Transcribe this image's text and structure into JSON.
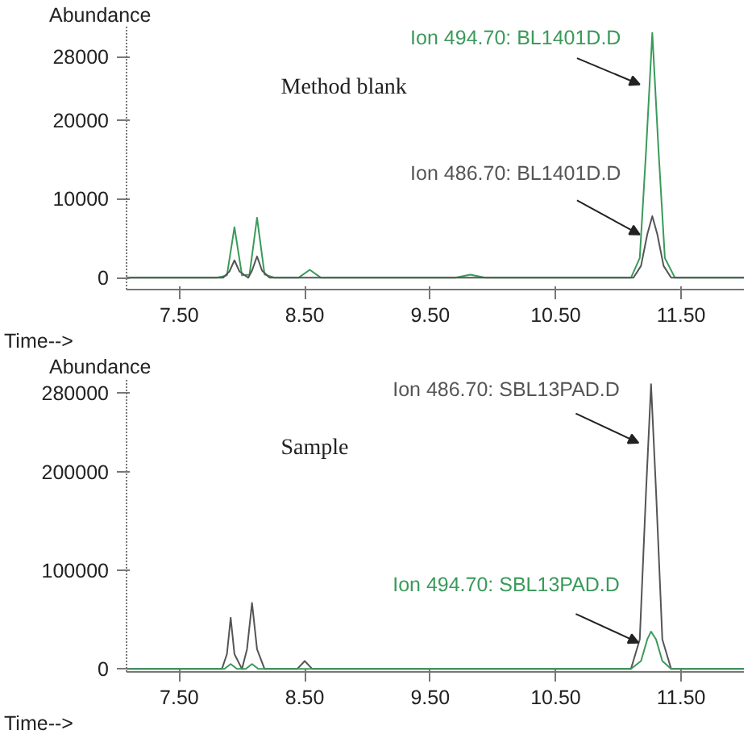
{
  "chart_data": [
    {
      "type": "line",
      "xlabel": "Time-->",
      "ylabel": "Abundance",
      "annotations": [
        "Method blank"
      ],
      "grid": false,
      "legend": false,
      "xlim": [
        7.08,
        12.0
      ],
      "xticks": [
        {
          "value": 7.5,
          "label": "7.50"
        },
        {
          "value": 8.5,
          "label": "8.50"
        },
        {
          "value": 9.5,
          "label": "9.50"
        },
        {
          "value": 10.5,
          "label": "10.50"
        },
        {
          "value": 11.5,
          "label": "11.50"
        }
      ],
      "ylim": [
        -1500,
        31800
      ],
      "yticks": [
        0,
        10000,
        20000,
        28000
      ],
      "series": [
        {
          "name": "Ion 494.70: BL1401D.D",
          "color": "#3a9a5a",
          "x": [
            7.08,
            7.8,
            7.88,
            7.94,
            8.0,
            8.06,
            8.12,
            8.18,
            8.26,
            8.45,
            8.54,
            8.63,
            9.7,
            9.82,
            9.94,
            11.1,
            11.17,
            11.22,
            11.27,
            11.32,
            11.37,
            11.45,
            12.0
          ],
          "values": [
            0,
            0,
            300,
            6400,
            300,
            400,
            7600,
            400,
            0,
            0,
            1000,
            0,
            0,
            400,
            0,
            0,
            2500,
            16000,
            31000,
            16000,
            2500,
            0,
            0
          ]
        },
        {
          "name": "Ion 486.70: BL1401D.D",
          "color": "#555555",
          "x": [
            7.08,
            7.85,
            7.9,
            7.94,
            7.98,
            8.05,
            8.08,
            8.12,
            8.16,
            8.22,
            11.12,
            11.18,
            11.23,
            11.27,
            11.31,
            11.36,
            11.42,
            12.0
          ],
          "values": [
            0,
            0,
            800,
            2200,
            800,
            0,
            900,
            2700,
            900,
            0,
            0,
            1500,
            5500,
            7800,
            5500,
            1500,
            0,
            0
          ]
        }
      ]
    },
    {
      "type": "line",
      "xlabel": "Time-->",
      "ylabel": "Abundance",
      "annotations": [
        "Sample"
      ],
      "grid": false,
      "legend": false,
      "xlim": [
        7.08,
        12.0
      ],
      "xticks": [
        {
          "value": 7.5,
          "label": "7.50"
        },
        {
          "value": 8.5,
          "label": "8.50"
        },
        {
          "value": 9.5,
          "label": "9.50"
        },
        {
          "value": 10.5,
          "label": "10.50"
        },
        {
          "value": 11.5,
          "label": "11.50"
        }
      ],
      "ylim": [
        -3000,
        295000
      ],
      "yticks": [
        0,
        100000,
        200000,
        280000
      ],
      "series": [
        {
          "name": "Ion 486.70: SBL13PAD.D",
          "color": "#555555",
          "x": [
            7.08,
            7.84,
            7.88,
            7.91,
            7.94,
            8.0,
            8.04,
            8.08,
            8.12,
            8.18,
            8.44,
            8.5,
            8.56,
            11.1,
            11.17,
            11.22,
            11.26,
            11.3,
            11.35,
            11.42,
            12.0
          ],
          "values": [
            0,
            0,
            15000,
            52000,
            15000,
            0,
            20000,
            67000,
            20000,
            0,
            0,
            8000,
            0,
            0,
            30000,
            180000,
            289000,
            180000,
            30000,
            0,
            0
          ]
        },
        {
          "name": "Ion 494.70: SBL13PAD.D",
          "color": "#3a9a5a",
          "x": [
            7.08,
            7.86,
            7.91,
            7.96,
            8.03,
            8.08,
            8.13,
            11.1,
            11.18,
            11.23,
            11.26,
            11.3,
            11.35,
            11.42,
            12.0
          ],
          "values": [
            0,
            0,
            5000,
            0,
            0,
            5000,
            0,
            0,
            8000,
            30000,
            38000,
            30000,
            8000,
            0,
            0
          ]
        }
      ]
    }
  ]
}
